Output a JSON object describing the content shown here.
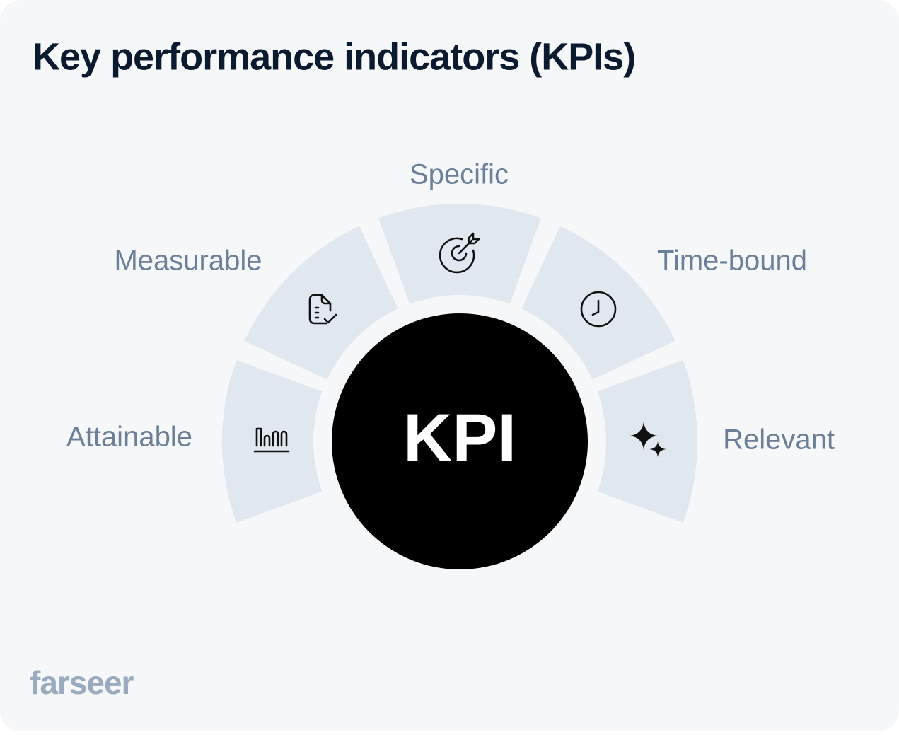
{
  "header": {
    "title": "Key performance indicators (KPIs)"
  },
  "center": {
    "label": "KPI"
  },
  "segments": [
    {
      "label": "Attainable"
    },
    {
      "label": "Measurable"
    },
    {
      "label": "Specific"
    },
    {
      "label": "Time-bound"
    },
    {
      "label": "Relevant"
    }
  ],
  "footer": {
    "brand": "farseer"
  }
}
